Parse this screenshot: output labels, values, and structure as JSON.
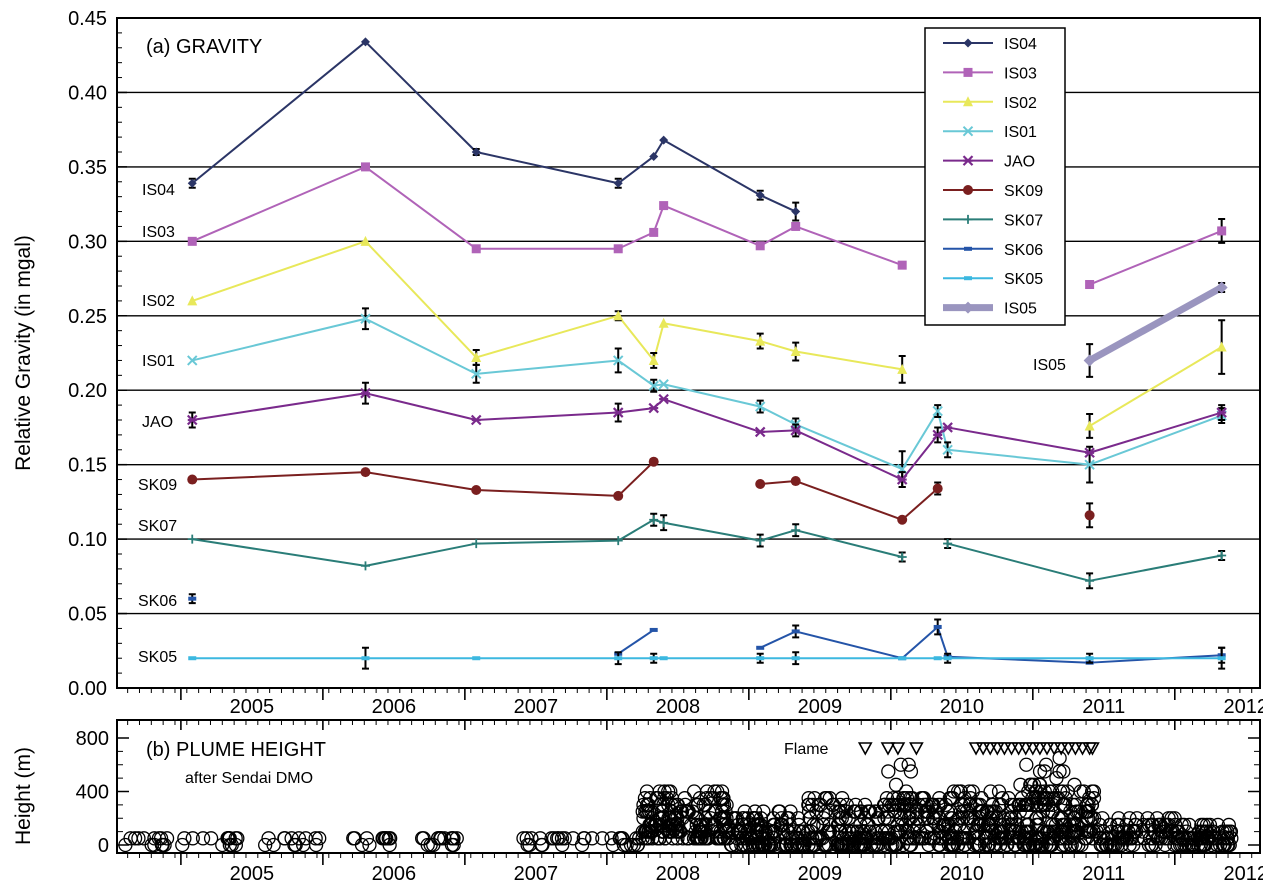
{
  "chart_data": [
    {
      "type": "line",
      "title": "(a) GRAVITY",
      "ylabel": "Relative Gravity (in mgal)",
      "xlabel": "",
      "xlim": [
        2004.55,
        2012.6
      ],
      "ylim": [
        0.0,
        0.45
      ],
      "x_ticks": [
        "2005",
        "2006",
        "2007",
        "2008",
        "2009",
        "2010",
        "2011",
        "2012"
      ],
      "y_ticks": [
        "0.00",
        "0.05",
        "0.10",
        "0.15",
        "0.20",
        "0.25",
        "0.30",
        "0.35",
        "0.40",
        "0.45"
      ],
      "grid": "horizontal",
      "legend_position": "top-right",
      "series": [
        {
          "name": "IS04",
          "color": "#2b3566",
          "marker": "diamond",
          "label": "IS04",
          "x": [
            2005.08,
            2006.3,
            2007.08,
            2008.08,
            2008.33,
            2008.4,
            2009.08,
            2009.33
          ],
          "y": [
            0.339,
            0.434,
            0.36,
            0.339,
            0.357,
            0.368,
            0.331,
            0.32
          ],
          "err": [
            0.003,
            0,
            0.002,
            0.003,
            0,
            0,
            0.003,
            0.006
          ]
        },
        {
          "name": "IS03",
          "color": "#b063b8",
          "marker": "square",
          "label": "IS03",
          "x": [
            2005.08,
            2006.3,
            2007.08,
            2008.08,
            2008.33,
            2008.4,
            2009.08,
            2009.33,
            2010.08,
            2011.4,
            2012.33
          ],
          "y": [
            0.3,
            0.35,
            0.295,
            0.295,
            0.306,
            0.324,
            0.297,
            0.31,
            0.284,
            0.271,
            0.307
          ],
          "err": [
            0,
            0,
            0,
            0,
            0,
            0,
            0,
            0,
            0,
            0,
            0.008
          ],
          "breaks_after": [
            8
          ]
        },
        {
          "name": "IS02",
          "color": "#e8e85a",
          "marker": "triangle",
          "label": "IS02",
          "x": [
            2005.08,
            2006.3,
            2007.08,
            2008.08,
            2008.33,
            2008.4,
            2009.08,
            2009.33,
            2010.08,
            2011.4,
            2012.33
          ],
          "y": [
            0.26,
            0.3,
            0.222,
            0.25,
            0.22,
            0.245,
            0.233,
            0.226,
            0.214,
            0.176,
            0.229
          ],
          "err": [
            0,
            0,
            0.005,
            0.003,
            0.005,
            0,
            0.005,
            0.006,
            0.009,
            0.008,
            0.018
          ],
          "breaks_after": [
            8
          ]
        },
        {
          "name": "IS01",
          "color": "#69c8d6",
          "marker": "x",
          "label": "IS01",
          "x": [
            2005.08,
            2006.3,
            2007.08,
            2008.08,
            2008.33,
            2008.4,
            2009.08,
            2009.33,
            2010.08,
            2010.33,
            2010.4,
            2011.4,
            2012.33
          ],
          "y": [
            0.22,
            0.248,
            0.211,
            0.22,
            0.203,
            0.204,
            0.189,
            0.177,
            0.147,
            0.186,
            0.16,
            0.15,
            0.183
          ],
          "err": [
            0,
            0.007,
            0.006,
            0.008,
            0.004,
            0,
            0.004,
            0.004,
            0.012,
            0.004,
            0.005,
            0.012,
            0.005
          ]
        },
        {
          "name": "JAO",
          "color": "#7a2a8c",
          "marker": "star",
          "label": "JAO",
          "x": [
            2005.08,
            2006.3,
            2007.08,
            2008.08,
            2008.33,
            2008.4,
            2009.08,
            2009.33,
            2010.08,
            2010.33,
            2010.4,
            2011.4,
            2012.33
          ],
          "y": [
            0.18,
            0.198,
            0.18,
            0.185,
            0.188,
            0.194,
            0.172,
            0.173,
            0.14,
            0.17,
            0.175,
            0.158,
            0.185
          ],
          "err": [
            0.005,
            0.007,
            0,
            0.006,
            0,
            0,
            0,
            0.004,
            0.005,
            0.005,
            0,
            0,
            0.005
          ]
        },
        {
          "name": "SK09",
          "color": "#7a1f1f",
          "marker": "circle",
          "label": "SK09",
          "x": [
            2005.08,
            2006.3,
            2007.08,
            2008.08,
            2008.33,
            2009.08,
            2009.33,
            2010.08,
            2010.33,
            2011.4
          ],
          "y": [
            0.14,
            0.145,
            0.133,
            0.129,
            0.152,
            0.137,
            0.139,
            0.113,
            0.134,
            0.116
          ],
          "err": [
            0,
            0,
            0,
            0,
            0,
            0,
            0,
            0,
            0.004,
            0.008
          ],
          "breaks_after": [
            4,
            8
          ]
        },
        {
          "name": "SK07",
          "color": "#2a7d78",
          "marker": "plus",
          "label": "SK07",
          "x": [
            2005.08,
            2006.3,
            2007.08,
            2008.08,
            2008.33,
            2008.4,
            2009.08,
            2009.33,
            2010.08,
            2010.4,
            2011.4,
            2012.33
          ],
          "y": [
            0.1,
            0.082,
            0.097,
            0.099,
            0.113,
            0.111,
            0.099,
            0.106,
            0.088,
            0.097,
            0.072,
            0.089
          ],
          "err": [
            0,
            0,
            0,
            0,
            0.004,
            0.005,
            0.004,
            0.004,
            0.003,
            0.003,
            0.005,
            0.003
          ],
          "breaks_after": [
            8
          ]
        },
        {
          "name": "SK06",
          "color": "#2454a8",
          "marker": "dash",
          "label": "SK06",
          "x": [
            2005.08,
            2008.08,
            2008.33,
            2009.08,
            2009.33,
            2010.08,
            2010.33,
            2010.4,
            2011.4,
            2012.33
          ],
          "y": [
            0.06,
            0.023,
            0.039,
            0.027,
            0.038,
            0.02,
            0.041,
            0.021,
            0.017,
            0.022
          ],
          "err": [
            0.003,
            0,
            0,
            0,
            0.004,
            0,
            0.005,
            0,
            0,
            0.005
          ],
          "breaks_after": [
            0,
            2
          ]
        },
        {
          "name": "SK05",
          "color": "#3cb8e0",
          "marker": "dash",
          "label": "SK05",
          "x": [
            2005.08,
            2006.3,
            2007.08,
            2008.08,
            2008.33,
            2008.4,
            2009.08,
            2009.33,
            2010.08,
            2010.33,
            2010.4,
            2011.4,
            2012.33
          ],
          "y": [
            0.02,
            0.02,
            0.02,
            0.02,
            0.02,
            0.02,
            0.02,
            0.02,
            0.02,
            0.02,
            0.02,
            0.02,
            0.02
          ],
          "err": [
            0,
            0.007,
            0,
            0.004,
            0.003,
            0,
            0.003,
            0.004,
            0,
            0,
            0.003,
            0.003,
            0.007
          ]
        },
        {
          "name": "IS05",
          "color": "#9a95bf",
          "marker": "diamond",
          "label": "IS05",
          "thick": true,
          "x": [
            2011.4,
            2012.33
          ],
          "y": [
            0.22,
            0.269
          ],
          "err": [
            0.011,
            0.003
          ]
        }
      ]
    },
    {
      "type": "scatter",
      "title": "(b)  PLUME HEIGHT",
      "subtitle": "after Sendai DMO",
      "ylabel": "Height (m)",
      "xlim": [
        2004.55,
        2012.6
      ],
      "ylim": [
        0,
        900
      ],
      "y_ticks": [
        "0",
        "400",
        "800"
      ],
      "x_ticks": [
        "2005",
        "2006",
        "2007",
        "2008",
        "2009",
        "2010",
        "2011",
        "2012"
      ],
      "flame_label": "Flame",
      "flame_x": [
        2009.82,
        2009.98,
        2010.05,
        2010.18,
        2010.6,
        2010.65,
        2010.7,
        2010.75,
        2010.8,
        2010.85,
        2010.9,
        2010.95,
        2011.0,
        2011.05,
        2011.1,
        2011.15,
        2011.2,
        2011.25,
        2011.3,
        2011.35,
        2011.4,
        2011.42
      ],
      "segments": [
        {
          "x0": 2004.6,
          "x1": 2005.4,
          "ymin": 20,
          "ymax": 70,
          "count": 30
        },
        {
          "x0": 2005.55,
          "x1": 2006.0,
          "ymin": 20,
          "ymax": 60,
          "count": 14
        },
        {
          "x0": 2006.2,
          "x1": 2007.0,
          "ymin": 20,
          "ymax": 70,
          "count": 30
        },
        {
          "x0": 2007.4,
          "x1": 2007.9,
          "ymin": 20,
          "ymax": 60,
          "count": 20
        },
        {
          "x0": 2007.95,
          "x1": 2008.25,
          "ymin": 10,
          "ymax": 60,
          "count": 16
        },
        {
          "x0": 2008.25,
          "x1": 2008.85,
          "ymin": 40,
          "ymax": 400,
          "count": 200
        },
        {
          "x0": 2008.85,
          "x1": 2009.4,
          "ymin": 0,
          "ymax": 250,
          "count": 130
        },
        {
          "x0": 2009.4,
          "x1": 2010.4,
          "ymin": 0,
          "ymax": 350,
          "count": 260
        },
        {
          "x0": 2009.95,
          "x1": 2010.15,
          "ymin": 300,
          "ymax": 600,
          "count": 14
        },
        {
          "x0": 2010.4,
          "x1": 2011.45,
          "ymin": 0,
          "ymax": 400,
          "count": 330
        },
        {
          "x0": 2010.9,
          "x1": 2011.4,
          "ymin": 400,
          "ymax": 650,
          "count": 20
        },
        {
          "x0": 2011.45,
          "x1": 2012.1,
          "ymin": 0,
          "ymax": 200,
          "count": 120
        },
        {
          "x0": 2012.1,
          "x1": 2012.4,
          "ymin": 0,
          "ymax": 150,
          "count": 70
        }
      ]
    }
  ]
}
